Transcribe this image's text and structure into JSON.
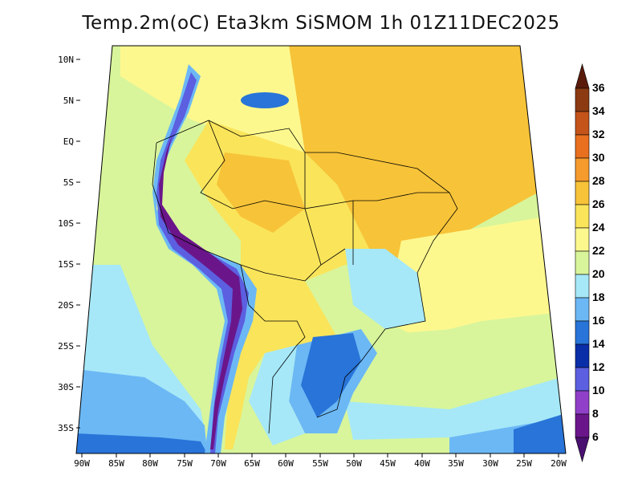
{
  "title": "Temp.2m(oC) Eta3km SiSMOM 1h 01Z11DEC2025",
  "latitude_labels": [
    "10N",
    "5N",
    "EQ",
    "5S",
    "10S",
    "15S",
    "20S",
    "25S",
    "30S",
    "35S"
  ],
  "longitude_labels": [
    "90W",
    "85W",
    "80W",
    "75W",
    "70W",
    "65W",
    "60W",
    "55W",
    "50W",
    "45W",
    "40W",
    "35W",
    "30W",
    "25W",
    "20W"
  ],
  "colorbar": {
    "labels": [
      "36",
      "34",
      "32",
      "30",
      "28",
      "26",
      "24",
      "22",
      "20",
      "18",
      "16",
      "14",
      "12",
      "10",
      "8",
      "6"
    ],
    "colors": [
      "#5a1a0a",
      "#8b3a12",
      "#c4541a",
      "#e8701e",
      "#f59b2e",
      "#f7c338",
      "#fae45a",
      "#fdf88e",
      "#d8f59b",
      "#a6e8f8",
      "#6cb8f5",
      "#2874d8",
      "#0a2ea8",
      "#5b5fe0",
      "#9040c8",
      "#6a168a",
      "#4a1070"
    ]
  }
}
